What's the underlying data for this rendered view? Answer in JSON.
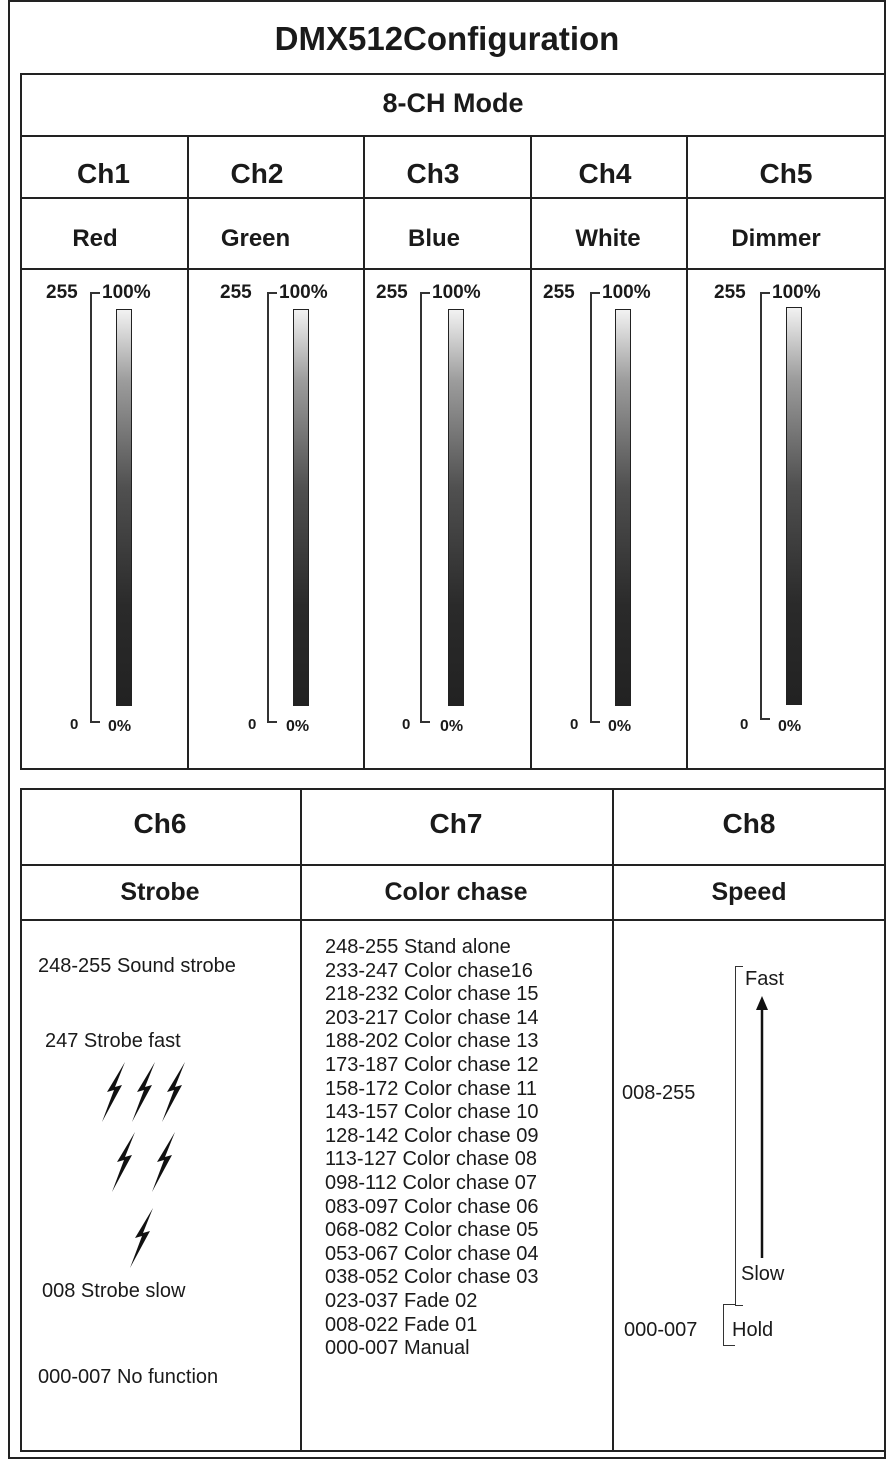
{
  "title": "DMX512Configuration",
  "mode": "8-CH Mode",
  "channels_top": [
    {
      "ch": "Ch1",
      "function": "Red",
      "max_dmx": "255",
      "max_pct": "100%",
      "min_dmx": "0",
      "min_pct": "0%"
    },
    {
      "ch": "Ch2",
      "function": "Green",
      "max_dmx": "255",
      "max_pct": "100%",
      "min_dmx": "0",
      "min_pct": "0%"
    },
    {
      "ch": "Ch3",
      "function": "Blue",
      "max_dmx": "255",
      "max_pct": "100%",
      "min_dmx": "0",
      "min_pct": "0%"
    },
    {
      "ch": "Ch4",
      "function": "White",
      "max_dmx": "255",
      "max_pct": "100%",
      "min_dmx": "0",
      "min_pct": "0%"
    },
    {
      "ch": "Ch5",
      "function": "Dimmer",
      "max_dmx": "255",
      "max_pct": "100%",
      "min_dmx": "0",
      "min_pct": "0%"
    }
  ],
  "ch6": {
    "ch": "Ch6",
    "function": "Strobe",
    "sound_strobe": "248-255 Sound strobe",
    "strobe_fast": "247 Strobe fast",
    "strobe_slow": "008 Strobe slow",
    "no_function": "000-007 No function"
  },
  "ch7": {
    "ch": "Ch7",
    "function": "Color chase",
    "items": [
      "248-255 Stand alone",
      "233-247 Color chase16",
      "218-232 Color chase 15",
      "203-217 Color chase 14",
      "188-202 Color chase 13",
      "173-187 Color chase 12",
      "158-172 Color chase 11",
      "143-157 Color chase 10",
      "128-142 Color chase 09",
      "113-127 Color chase 08",
      "098-112 Color chase 07",
      "083-097 Color chase 06",
      "068-082 Color chase 05",
      "053-067 Color chase 04",
      "038-052 Color chase 03",
      "023-037 Fade 02",
      "008-022 Fade 01",
      "000-007 Manual"
    ]
  },
  "ch8": {
    "ch": "Ch8",
    "function": "Speed",
    "range_speed": "008-255",
    "fast": "Fast",
    "slow": "Slow",
    "range_hold": "000-007",
    "hold": "Hold"
  }
}
